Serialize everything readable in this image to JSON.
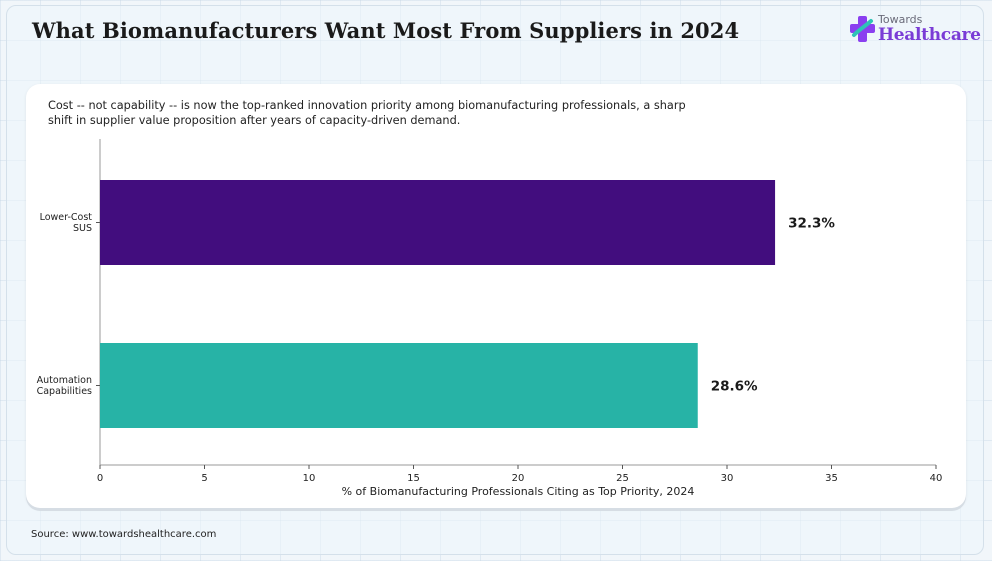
{
  "header": {
    "title": "What Biomanufacturers Want Most From Suppliers in 2024"
  },
  "logo": {
    "top_text": "Towards",
    "main_text": "Healthcare",
    "colors": {
      "text": "#7a3cd6",
      "mark_purple": "#8a3ff0",
      "mark_teal": "#2ec4b6"
    }
  },
  "subtitle": "Cost -- not capability -- is now the top-ranked innovation priority among biomanufacturing professionals, a sharp shift in supplier value proposition after years of capacity-driven demand.",
  "source": "Source: www.towardshealthcare.com",
  "chart_data": {
    "type": "bar",
    "orientation": "horizontal",
    "categories": [
      [
        "Lower-Cost",
        "SUS"
      ],
      [
        "Automation",
        "Capabilities"
      ]
    ],
    "values": [
      32.3,
      28.6
    ],
    "value_labels": [
      "32.3%",
      "28.6%"
    ],
    "colors": [
      "#420d7e",
      "#27b3a6"
    ],
    "xlabel": "% of Biomanufacturing Professionals Citing as Top Priority, 2024",
    "ylabel": "",
    "xlim": [
      0,
      40
    ],
    "xticks": [
      0,
      5,
      10,
      15,
      20,
      25,
      30,
      35,
      40
    ],
    "grid": false,
    "legend": "none"
  }
}
